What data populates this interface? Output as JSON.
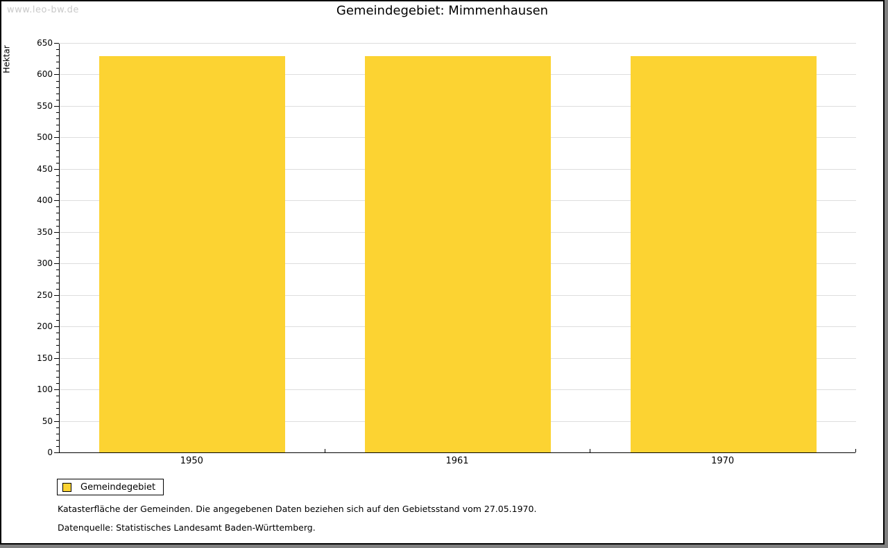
{
  "watermark": "www.leo-bw.de",
  "header": {
    "title": "Gemeindegebiet: Mimmenhausen"
  },
  "chart_data": {
    "type": "bar",
    "title": "Gemeindegebiet: Mimmenhausen",
    "categories": [
      "1950",
      "1961",
      "1970"
    ],
    "series": [
      {
        "name": "Gemeindegebiet",
        "values": [
          629,
          629,
          629
        ],
        "color": "#FCD332"
      }
    ],
    "xlabel": "",
    "ylabel": "Hektar",
    "ylim": [
      0,
      650
    ],
    "y_ticks": [
      0,
      50,
      100,
      150,
      200,
      250,
      300,
      350,
      400,
      450,
      500,
      550,
      600,
      650
    ],
    "y_minor_step": 10,
    "grid": true,
    "gridline_color": "#dddddd",
    "bar_width_fraction": 0.7,
    "legend_position": "bottom-left",
    "legend_entries": [
      "Gemeindegebiet"
    ]
  },
  "legend": {
    "label": "Gemeindegebiet",
    "swatch_color": "#FCD332"
  },
  "footnotes": [
    "Katasterfläche der Gemeinden. Die angegebenen Daten beziehen sich auf den Gebietsstand vom 27.05.1970.",
    "Datenquelle: Statistisches Landesamt Baden-Württemberg."
  ],
  "colors": {
    "bar": "#FCD332",
    "grid": "#dddddd",
    "watermark": "#c9c9c9",
    "frame_shadow": "#808080",
    "frame_border": "#000000"
  }
}
